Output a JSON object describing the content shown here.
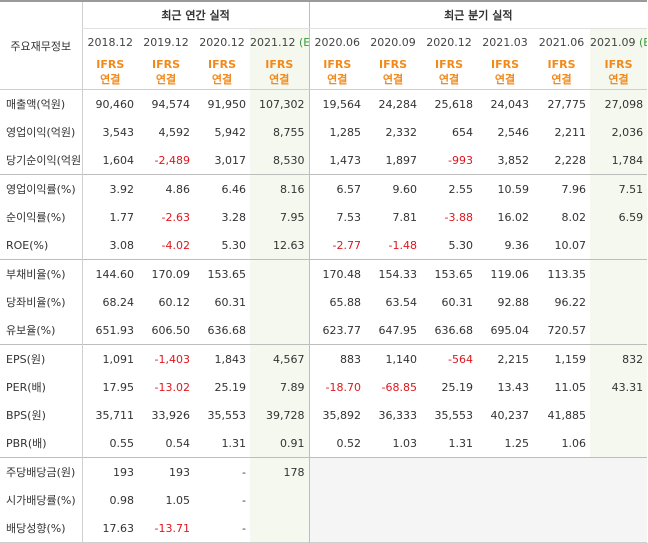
{
  "corner_label": "주요재무정보",
  "annual_label": "최근 연간 실적",
  "quarter_label": "최근 분기 실적",
  "estimate_mark": "(E)",
  "ifrs_line1": "IFRS",
  "ifrs_line2": "연결",
  "annual_periods": [
    "2018.12",
    "2019.12",
    "2020.12",
    "2021.12"
  ],
  "quarter_periods": [
    "2020.06",
    "2020.09",
    "2020.12",
    "2021.03",
    "2021.06",
    "2021.09"
  ],
  "rows": [
    {
      "label": "매출액(억원)",
      "annual": [
        "90,460",
        "94,574",
        "91,950",
        "107,302"
      ],
      "quarter": [
        "19,564",
        "24,284",
        "25,618",
        "24,043",
        "27,775",
        "27,098"
      ]
    },
    {
      "label": "영업이익(억원)",
      "annual": [
        "3,543",
        "4,592",
        "5,942",
        "8,755"
      ],
      "quarter": [
        "1,285",
        "2,332",
        "654",
        "2,546",
        "2,211",
        "2,036"
      ]
    },
    {
      "label": "당기순이익(억원)",
      "annual": [
        "1,604",
        "-2,489",
        "3,017",
        "8,530"
      ],
      "quarter": [
        "1,473",
        "1,897",
        "-993",
        "3,852",
        "2,228",
        "1,784"
      ]
    },
    {
      "label": "영업이익률(%)",
      "annual": [
        "3.92",
        "4.86",
        "6.46",
        "8.16"
      ],
      "quarter": [
        "6.57",
        "9.60",
        "2.55",
        "10.59",
        "7.96",
        "7.51"
      ]
    },
    {
      "label": "순이익률(%)",
      "annual": [
        "1.77",
        "-2.63",
        "3.28",
        "7.95"
      ],
      "quarter": [
        "7.53",
        "7.81",
        "-3.88",
        "16.02",
        "8.02",
        "6.59"
      ]
    },
    {
      "label": "ROE(%)",
      "annual": [
        "3.08",
        "-4.02",
        "5.30",
        "12.63"
      ],
      "quarter": [
        "-2.77",
        "-1.48",
        "5.30",
        "9.36",
        "10.07",
        ""
      ]
    },
    {
      "label": "부채비율(%)",
      "annual": [
        "144.60",
        "170.09",
        "153.65",
        ""
      ],
      "quarter": [
        "170.48",
        "154.33",
        "153.65",
        "119.06",
        "113.35",
        ""
      ]
    },
    {
      "label": "당좌비율(%)",
      "annual": [
        "68.24",
        "60.12",
        "60.31",
        ""
      ],
      "quarter": [
        "65.88",
        "63.54",
        "60.31",
        "92.88",
        "96.22",
        ""
      ]
    },
    {
      "label": "유보율(%)",
      "annual": [
        "651.93",
        "606.50",
        "636.68",
        ""
      ],
      "quarter": [
        "623.77",
        "647.95",
        "636.68",
        "695.04",
        "720.57",
        ""
      ]
    },
    {
      "label": "EPS(원)",
      "annual": [
        "1,091",
        "-1,403",
        "1,843",
        "4,567"
      ],
      "quarter": [
        "883",
        "1,140",
        "-564",
        "2,215",
        "1,159",
        "832"
      ]
    },
    {
      "label": "PER(배)",
      "annual": [
        "17.95",
        "-13.02",
        "25.19",
        "7.89"
      ],
      "quarter": [
        "-18.70",
        "-68.85",
        "25.19",
        "13.43",
        "11.05",
        "43.31"
      ]
    },
    {
      "label": "BPS(원)",
      "annual": [
        "35,711",
        "33,926",
        "35,553",
        "39,728"
      ],
      "quarter": [
        "35,892",
        "36,333",
        "35,553",
        "40,237",
        "41,885",
        ""
      ]
    },
    {
      "label": "PBR(배)",
      "annual": [
        "0.55",
        "0.54",
        "1.31",
        "0.91"
      ],
      "quarter": [
        "0.52",
        "1.03",
        "1.31",
        "1.25",
        "1.06",
        ""
      ]
    },
    {
      "label": "주당배당금(원)",
      "annual": [
        "193",
        "193",
        "-",
        "178"
      ],
      "quarter": [
        "",
        "",
        "",
        "",
        "",
        ""
      ]
    },
    {
      "label": "시가배당률(%)",
      "annual": [
        "0.98",
        "1.05",
        "-",
        ""
      ],
      "quarter": [
        "",
        "",
        "",
        "",
        "",
        ""
      ]
    },
    {
      "label": "배당성향(%)",
      "annual": [
        "17.63",
        "-13.71",
        "-",
        ""
      ],
      "quarter": [
        "",
        "",
        "",
        "",
        "",
        ""
      ]
    }
  ],
  "group_starts": [
    0,
    3,
    6,
    9,
    13
  ],
  "colors": {
    "negative": "#e0161c",
    "ifrs": "#f28a1b",
    "estimate": "#3a9a3a",
    "estimate_bg": "#f4f8ee",
    "empty_bg": "#f5f5f5"
  }
}
